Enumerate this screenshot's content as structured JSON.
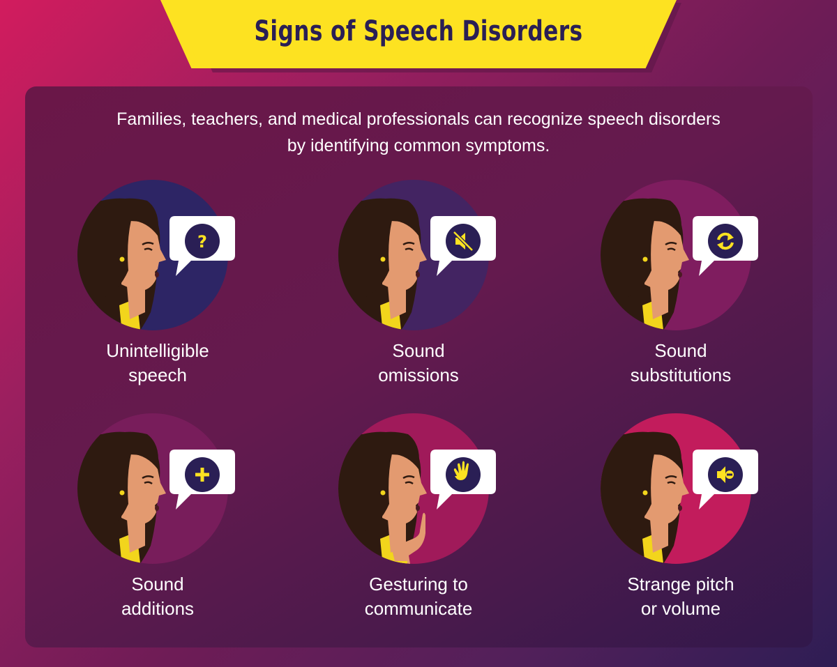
{
  "title": "Signs of Speech Disorders",
  "subtitle_line1": "Families, teachers, and medical professionals can recognize speech disorders",
  "subtitle_line2": "by identifying common symptoms.",
  "colors": {
    "banner": "#fde221",
    "title_text": "#2a1f55",
    "icon_circle": "#2a1f55",
    "icon_symbol": "#fde221",
    "hair": "#2e1a10",
    "skin": "#e39a70",
    "shirt": "#f2d51c"
  },
  "items": [
    {
      "line1": "Unintelligible",
      "line2": "speech",
      "icon": "question-mark-icon",
      "circle_color": "#2d2565"
    },
    {
      "line1": "Sound",
      "line2": "omissions",
      "icon": "muted-speaker-icon",
      "circle_color": "#432462"
    },
    {
      "line1": "Sound",
      "line2": "substitutions",
      "icon": "refresh-arrows-icon",
      "circle_color": "#7f1d5f"
    },
    {
      "line1": "Sound",
      "line2": "additions",
      "icon": "plus-icon",
      "circle_color": "#781d5b"
    },
    {
      "line1": "Gesturing to",
      "line2": "communicate",
      "icon": "waving-hand-icon",
      "circle_color": "#a01a5a"
    },
    {
      "line1": "Strange pitch",
      "line2": "or volume",
      "icon": "speaker-minus-icon",
      "circle_color": "#c21c5c"
    }
  ]
}
